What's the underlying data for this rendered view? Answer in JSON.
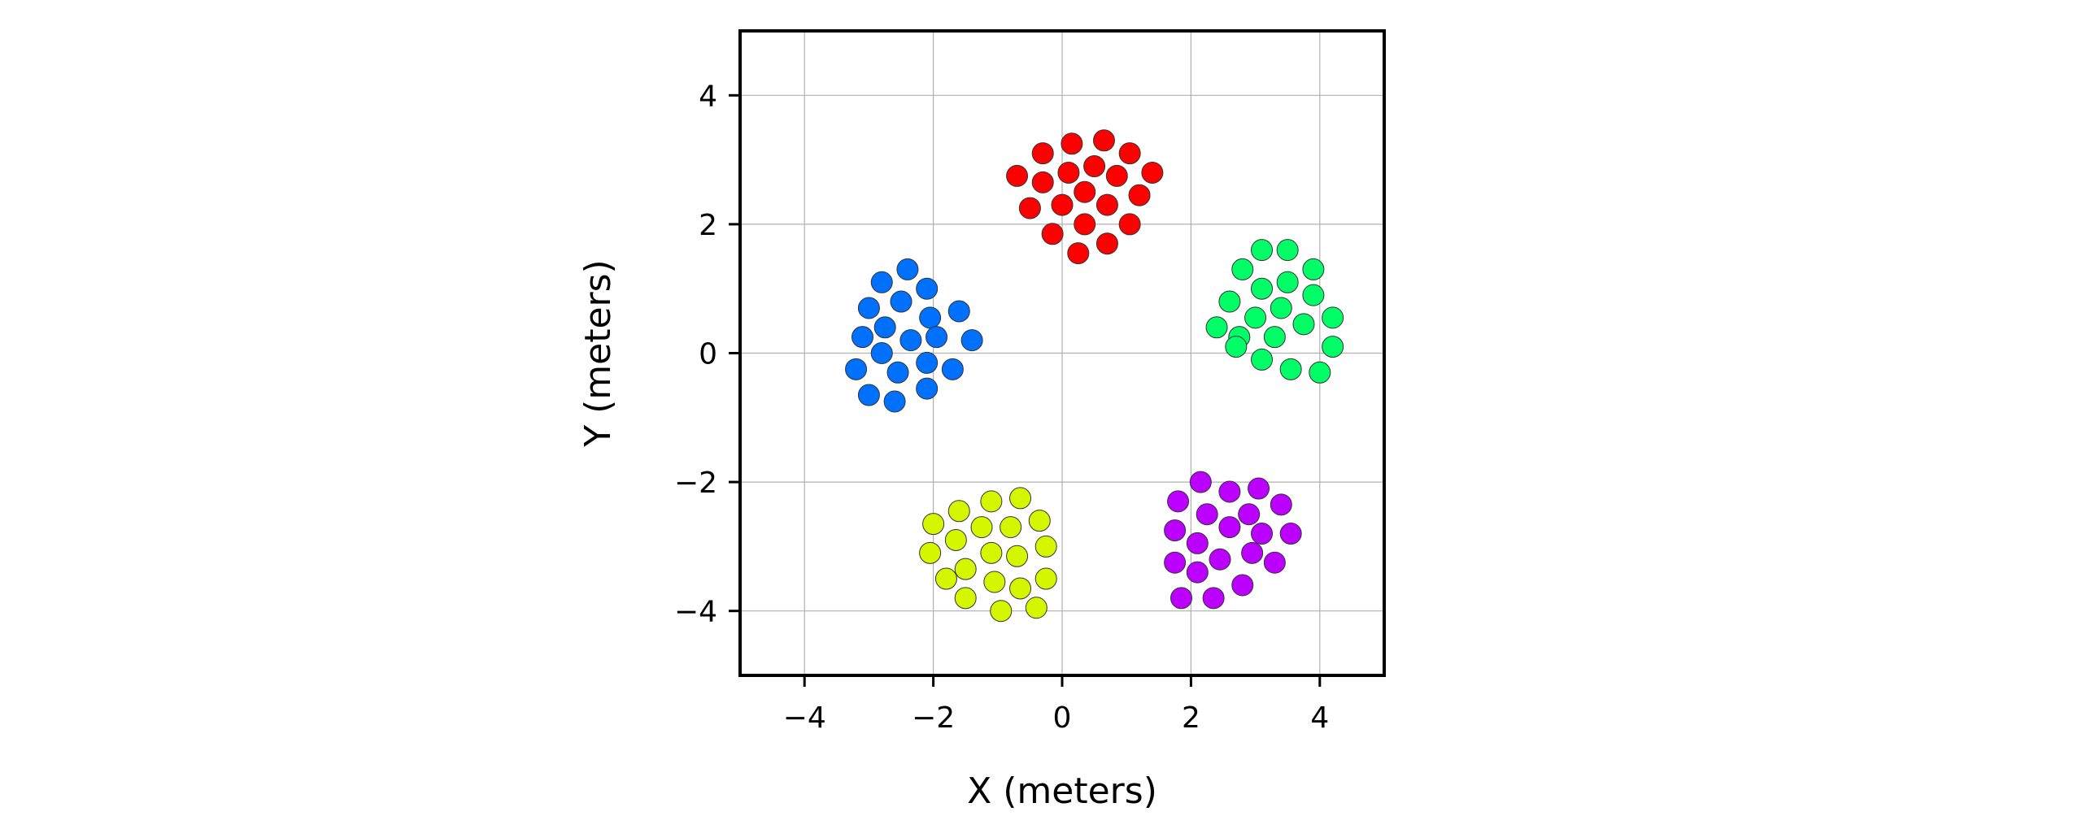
{
  "chart_data": {
    "type": "scatter",
    "title": "",
    "xlabel": "X (meters)",
    "ylabel": "Y (meters)",
    "xlim": [
      -5,
      5
    ],
    "ylim": [
      -5,
      5
    ],
    "xticks": [
      -4,
      -2,
      0,
      2,
      4
    ],
    "yticks": [
      -4,
      -2,
      0,
      2,
      4
    ],
    "xtick_labels": [
      "−4",
      "−2",
      "0",
      "2",
      "4"
    ],
    "ytick_labels": [
      "−4",
      "−2",
      "0",
      "2",
      "4"
    ],
    "grid": true,
    "legend": "none",
    "series": [
      {
        "color": "#ff0000",
        "points": [
          [
            -0.7,
            2.75
          ],
          [
            -0.3,
            3.1
          ],
          [
            0.15,
            3.25
          ],
          [
            0.65,
            3.3
          ],
          [
            1.05,
            3.1
          ],
          [
            -0.3,
            2.65
          ],
          [
            0.1,
            2.8
          ],
          [
            0.5,
            2.9
          ],
          [
            0.85,
            2.75
          ],
          [
            1.4,
            2.8
          ],
          [
            -0.5,
            2.25
          ],
          [
            0.0,
            2.3
          ],
          [
            0.35,
            2.5
          ],
          [
            0.7,
            2.3
          ],
          [
            1.2,
            2.45
          ],
          [
            -0.15,
            1.85
          ],
          [
            0.35,
            2.0
          ],
          [
            0.25,
            1.55
          ],
          [
            0.7,
            1.7
          ],
          [
            1.05,
            2.0
          ]
        ]
      },
      {
        "color": "#0070ff",
        "points": [
          [
            -2.4,
            1.3
          ],
          [
            -2.8,
            1.1
          ],
          [
            -2.1,
            1.0
          ],
          [
            -3.0,
            0.7
          ],
          [
            -2.5,
            0.8
          ],
          [
            -2.05,
            0.55
          ],
          [
            -1.6,
            0.65
          ],
          [
            -2.75,
            0.4
          ],
          [
            -3.1,
            0.25
          ],
          [
            -2.35,
            0.2
          ],
          [
            -1.95,
            0.25
          ],
          [
            -1.4,
            0.2
          ],
          [
            -2.8,
            0.0
          ],
          [
            -3.2,
            -0.25
          ],
          [
            -2.55,
            -0.3
          ],
          [
            -2.1,
            -0.15
          ],
          [
            -1.7,
            -0.25
          ],
          [
            -3.0,
            -0.65
          ],
          [
            -2.6,
            -0.75
          ],
          [
            -2.1,
            -0.55
          ]
        ]
      },
      {
        "color": "#00ff66",
        "points": [
          [
            3.1,
            1.6
          ],
          [
            3.5,
            1.6
          ],
          [
            2.8,
            1.3
          ],
          [
            3.9,
            1.3
          ],
          [
            3.1,
            1.0
          ],
          [
            3.5,
            1.1
          ],
          [
            2.6,
            0.8
          ],
          [
            3.9,
            0.9
          ],
          [
            3.0,
            0.55
          ],
          [
            3.4,
            0.7
          ],
          [
            4.2,
            0.55
          ],
          [
            2.4,
            0.4
          ],
          [
            2.75,
            0.25
          ],
          [
            3.3,
            0.25
          ],
          [
            3.75,
            0.45
          ],
          [
            4.2,
            0.1
          ],
          [
            2.7,
            0.1
          ],
          [
            3.1,
            -0.1
          ],
          [
            3.55,
            -0.25
          ],
          [
            4.0,
            -0.3
          ]
        ]
      },
      {
        "color": "#d4f700",
        "points": [
          [
            -0.65,
            -2.25
          ],
          [
            -1.1,
            -2.3
          ],
          [
            -1.6,
            -2.45
          ],
          [
            -2.0,
            -2.65
          ],
          [
            -1.25,
            -2.7
          ],
          [
            -0.8,
            -2.7
          ],
          [
            -0.35,
            -2.6
          ],
          [
            -1.65,
            -2.9
          ],
          [
            -2.05,
            -3.1
          ],
          [
            -1.1,
            -3.1
          ],
          [
            -0.7,
            -3.15
          ],
          [
            -0.25,
            -3.0
          ],
          [
            -1.5,
            -3.35
          ],
          [
            -1.8,
            -3.5
          ],
          [
            -1.05,
            -3.55
          ],
          [
            -0.65,
            -3.65
          ],
          [
            -0.25,
            -3.5
          ],
          [
            -1.5,
            -3.8
          ],
          [
            -0.95,
            -4.0
          ],
          [
            -0.4,
            -3.95
          ]
        ]
      },
      {
        "color": "#bb00ff",
        "points": [
          [
            2.15,
            -2.0
          ],
          [
            2.6,
            -2.15
          ],
          [
            3.05,
            -2.1
          ],
          [
            1.8,
            -2.3
          ],
          [
            3.4,
            -2.35
          ],
          [
            2.25,
            -2.5
          ],
          [
            2.9,
            -2.5
          ],
          [
            1.75,
            -2.75
          ],
          [
            2.6,
            -2.7
          ],
          [
            3.1,
            -2.8
          ],
          [
            3.55,
            -2.8
          ],
          [
            2.1,
            -2.95
          ],
          [
            2.95,
            -3.1
          ],
          [
            1.75,
            -3.25
          ],
          [
            2.45,
            -3.2
          ],
          [
            3.3,
            -3.25
          ],
          [
            2.1,
            -3.4
          ],
          [
            2.8,
            -3.6
          ],
          [
            1.85,
            -3.8
          ],
          [
            2.35,
            -3.8
          ]
        ]
      }
    ]
  }
}
